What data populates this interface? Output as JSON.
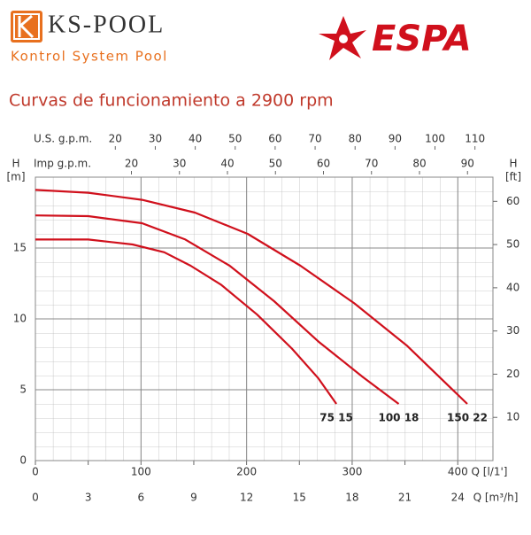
{
  "header": {
    "brand": "KS-POOL",
    "tagline": "Kontrol System Pool",
    "logo": "ESPA"
  },
  "chart_data": {
    "type": "line",
    "title": "Curvas de funcionamiento a 2900 rpm",
    "x_label": "Q [l/1']",
    "xlim": [
      0,
      433.3
    ],
    "xticks": [
      0,
      100,
      200,
      300,
      400
    ],
    "x_m3h": {
      "label": "Q [m³/h]",
      "lim": [
        0,
        26
      ],
      "ticks": [
        0,
        3,
        6,
        9,
        12,
        15,
        18,
        21,
        24
      ]
    },
    "x_us_gpm": {
      "label": "U.S. g.p.m.",
      "lim": [
        0,
        114.5
      ],
      "ticks": [
        20,
        30,
        40,
        50,
        60,
        70,
        80,
        90,
        100,
        110
      ]
    },
    "x_imp_gpm": {
      "label": "Imp g.p.m.",
      "lim": [
        0,
        95.3
      ],
      "ticks": [
        20,
        30,
        40,
        50,
        60,
        70,
        80,
        90
      ]
    },
    "y_label": "H",
    "y_unit": "[m]",
    "ylim": [
      0,
      20
    ],
    "yticks": [
      0,
      5,
      10,
      15
    ],
    "y2_label": "H",
    "y2_unit": "[ft]",
    "y2lim": [
      0,
      65.6
    ],
    "y2ticks": [
      10,
      20,
      30,
      40,
      50,
      60
    ],
    "grid": true,
    "series": [
      {
        "name": "75 15",
        "color": "#d0101c",
        "x": [
          0,
          50,
          92,
          122,
          147,
          176,
          210,
          243,
          268,
          285
        ],
        "values": [
          15.6,
          15.6,
          15.25,
          14.7,
          13.75,
          12.4,
          10.3,
          7.9,
          5.8,
          4.0
        ]
      },
      {
        "name": "100 18",
        "color": "#d0101c",
        "x": [
          0,
          50,
          101,
          142,
          184,
          226,
          268,
          310,
          344
        ],
        "values": [
          17.3,
          17.25,
          16.75,
          15.6,
          13.75,
          11.25,
          8.4,
          5.9,
          4.0
        ]
      },
      {
        "name": "150 22",
        "color": "#d0101c",
        "x": [
          0,
          50,
          101,
          151,
          201,
          251,
          302,
          352,
          409
        ],
        "values": [
          19.1,
          18.9,
          18.4,
          17.5,
          16.0,
          13.75,
          11.1,
          8.1,
          4.0
        ]
      }
    ]
  }
}
